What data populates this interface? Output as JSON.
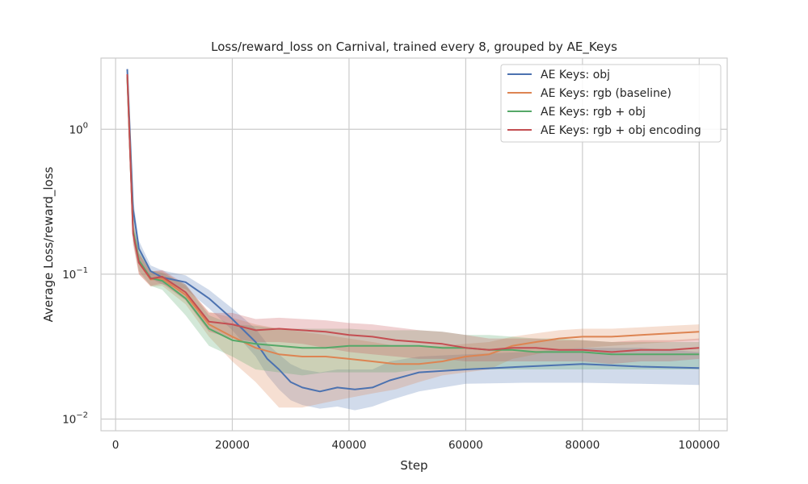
{
  "chart_data": {
    "type": "line",
    "title": "Loss/reward_loss on Carnival, trained every 8, grouped by AE_Keys",
    "xlabel": "Step",
    "ylabel": "Average Loss/reward_loss",
    "y_scale": "log",
    "xlim": [
      -2500,
      104800
    ],
    "ylim": [
      0.0083,
      3.1
    ],
    "x_ticks": [
      0,
      20000,
      40000,
      60000,
      80000,
      100000
    ],
    "x_tick_labels": [
      "0",
      "20000",
      "40000",
      "60000",
      "80000",
      "100000"
    ],
    "y_ticks": [
      {
        "value": 1,
        "base": "10",
        "exp": "0"
      },
      {
        "value": 0.1,
        "base": "10",
        "exp": "−1"
      },
      {
        "value": 0.01,
        "base": "10",
        "exp": "−2"
      }
    ],
    "grid": true,
    "legend_position": "top-right",
    "series": [
      {
        "name": "AE Keys: obj",
        "color": "#4c72b0",
        "x": [
          2000,
          3000,
          4000,
          6000,
          8000,
          12000,
          16000,
          20000,
          24000,
          26000,
          28000,
          30000,
          32000,
          35000,
          38000,
          41000,
          44000,
          47000,
          52000,
          60000,
          70000,
          80000,
          90000,
          100000
        ],
        "y": [
          2.6,
          0.28,
          0.15,
          0.105,
          0.095,
          0.088,
          0.068,
          0.049,
          0.034,
          0.026,
          0.022,
          0.018,
          0.0165,
          0.0155,
          0.0165,
          0.016,
          0.0165,
          0.0185,
          0.021,
          0.022,
          0.023,
          0.024,
          0.023,
          0.0225
        ],
        "lower": [
          2.2,
          0.23,
          0.13,
          0.093,
          0.085,
          0.079,
          0.058,
          0.041,
          0.027,
          0.02,
          0.016,
          0.0135,
          0.0125,
          0.0118,
          0.0122,
          0.0115,
          0.0122,
          0.0135,
          0.0155,
          0.0175,
          0.0178,
          0.0178,
          0.0175,
          0.0172
        ],
        "upper": [
          2.7,
          0.33,
          0.17,
          0.115,
          0.106,
          0.098,
          0.078,
          0.058,
          0.042,
          0.033,
          0.028,
          0.024,
          0.022,
          0.021,
          0.022,
          0.022,
          0.022,
          0.025,
          0.027,
          0.028,
          0.029,
          0.031,
          0.031,
          0.029
        ]
      },
      {
        "name": "AE Keys: rgb (baseline)",
        "color": "#dd8452",
        "x": [
          2000,
          3000,
          4000,
          6000,
          8000,
          12000,
          16000,
          20000,
          24000,
          28000,
          32000,
          36000,
          40000,
          44000,
          48000,
          52000,
          56000,
          60000,
          64000,
          68000,
          72000,
          76000,
          80000,
          85000,
          90000,
          95000,
          100000
        ],
        "y": [
          2.4,
          0.2,
          0.12,
          0.092,
          0.093,
          0.072,
          0.045,
          0.037,
          0.031,
          0.028,
          0.027,
          0.027,
          0.026,
          0.025,
          0.024,
          0.024,
          0.025,
          0.027,
          0.028,
          0.032,
          0.034,
          0.036,
          0.037,
          0.037,
          0.038,
          0.039,
          0.04
        ],
        "lower": [
          2.0,
          0.17,
          0.1,
          0.082,
          0.083,
          0.062,
          0.037,
          0.025,
          0.018,
          0.012,
          0.012,
          0.013,
          0.014,
          0.015,
          0.016,
          0.018,
          0.02,
          0.021,
          0.022,
          0.026,
          0.028,
          0.03,
          0.031,
          0.032,
          0.033,
          0.034,
          0.035
        ],
        "upper": [
          2.6,
          0.24,
          0.14,
          0.105,
          0.105,
          0.083,
          0.055,
          0.05,
          0.045,
          0.042,
          0.04,
          0.038,
          0.036,
          0.034,
          0.032,
          0.032,
          0.032,
          0.033,
          0.034,
          0.037,
          0.039,
          0.041,
          0.042,
          0.042,
          0.043,
          0.044,
          0.045
        ]
      },
      {
        "name": "AE Keys: rgb + obj",
        "color": "#55a868",
        "x": [
          2000,
          3000,
          4000,
          6000,
          8000,
          12000,
          16000,
          20000,
          24000,
          28000,
          32000,
          36000,
          40000,
          44000,
          48000,
          52000,
          56000,
          60000,
          64000,
          68000,
          72000,
          76000,
          80000,
          85000,
          90000,
          95000,
          100000
        ],
        "y": [
          2.3,
          0.2,
          0.125,
          0.094,
          0.09,
          0.068,
          0.042,
          0.035,
          0.033,
          0.032,
          0.031,
          0.031,
          0.032,
          0.032,
          0.032,
          0.032,
          0.031,
          0.031,
          0.03,
          0.03,
          0.029,
          0.029,
          0.029,
          0.028,
          0.028,
          0.028,
          0.028
        ],
        "lower": [
          1.9,
          0.17,
          0.105,
          0.083,
          0.078,
          0.052,
          0.032,
          0.027,
          0.022,
          0.021,
          0.02,
          0.021,
          0.021,
          0.021,
          0.021,
          0.022,
          0.022,
          0.022,
          0.022,
          0.022,
          0.022,
          0.022,
          0.022,
          0.022,
          0.022,
          0.022,
          0.022
        ],
        "upper": [
          2.6,
          0.23,
          0.145,
          0.106,
          0.102,
          0.085,
          0.052,
          0.045,
          0.044,
          0.042,
          0.042,
          0.042,
          0.042,
          0.041,
          0.041,
          0.041,
          0.04,
          0.038,
          0.038,
          0.037,
          0.036,
          0.036,
          0.035,
          0.034,
          0.034,
          0.034,
          0.034
        ]
      },
      {
        "name": "AE Keys: rgb + obj encoding",
        "color": "#c44e52",
        "x": [
          2000,
          3000,
          4000,
          6000,
          8000,
          12000,
          16000,
          20000,
          24000,
          28000,
          32000,
          36000,
          40000,
          44000,
          48000,
          52000,
          56000,
          60000,
          64000,
          68000,
          72000,
          76000,
          80000,
          85000,
          90000,
          95000,
          100000
        ],
        "y": [
          2.4,
          0.19,
          0.12,
          0.093,
          0.096,
          0.075,
          0.047,
          0.045,
          0.041,
          0.042,
          0.041,
          0.04,
          0.038,
          0.037,
          0.035,
          0.034,
          0.033,
          0.031,
          0.03,
          0.031,
          0.031,
          0.03,
          0.03,
          0.029,
          0.03,
          0.03,
          0.031
        ],
        "lower": [
          2.0,
          0.16,
          0.1,
          0.083,
          0.086,
          0.066,
          0.04,
          0.036,
          0.034,
          0.034,
          0.033,
          0.031,
          0.029,
          0.028,
          0.027,
          0.026,
          0.026,
          0.025,
          0.025,
          0.025,
          0.025,
          0.025,
          0.025,
          0.024,
          0.025,
          0.025,
          0.026
        ],
        "upper": [
          2.7,
          0.22,
          0.14,
          0.104,
          0.107,
          0.085,
          0.054,
          0.054,
          0.049,
          0.05,
          0.049,
          0.048,
          0.046,
          0.045,
          0.043,
          0.041,
          0.04,
          0.038,
          0.036,
          0.036,
          0.036,
          0.035,
          0.035,
          0.034,
          0.035,
          0.035,
          0.036
        ]
      }
    ]
  }
}
